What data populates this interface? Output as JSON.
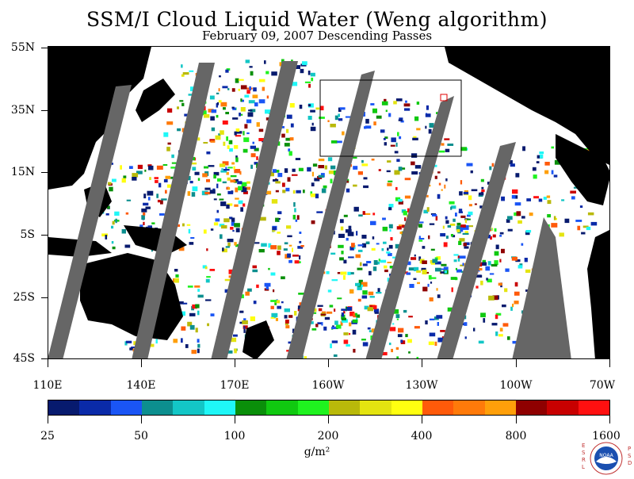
{
  "title": "SSM/I Cloud Liquid Water (Weng algorithm)",
  "subtitle": "February 09, 2007  Descending Passes",
  "map": {
    "lat_labels": [
      "55N",
      "35N",
      "15N",
      "5S",
      "25S",
      "45S"
    ],
    "lon_labels": [
      "110E",
      "140E",
      "170E",
      "160W",
      "130W",
      "100W",
      "70W"
    ],
    "land_color": "#000000",
    "no_data_color": "#666666",
    "background_color": "#ffffff",
    "box_color": "#000000",
    "marker_color": "#e00000"
  },
  "colorbar": {
    "colors": [
      "#071a6e",
      "#0a2aa8",
      "#1a55f5",
      "#0c8f8f",
      "#13c6c6",
      "#1ff7f7",
      "#0a8f0a",
      "#10c910",
      "#1ff21f",
      "#b9b90a",
      "#e4e410",
      "#ffff10",
      "#ff5a0a",
      "#ff7a0a",
      "#ff9f0a",
      "#8f0000",
      "#c80000",
      "#ff1010"
    ],
    "labels": [
      "25",
      "50",
      "100",
      "200",
      "400",
      "800",
      "1600"
    ],
    "units": "g/m²"
  },
  "logo": {
    "left_text": "ESRL",
    "right_text": "PSD",
    "emblem_text": "NOAA"
  }
}
